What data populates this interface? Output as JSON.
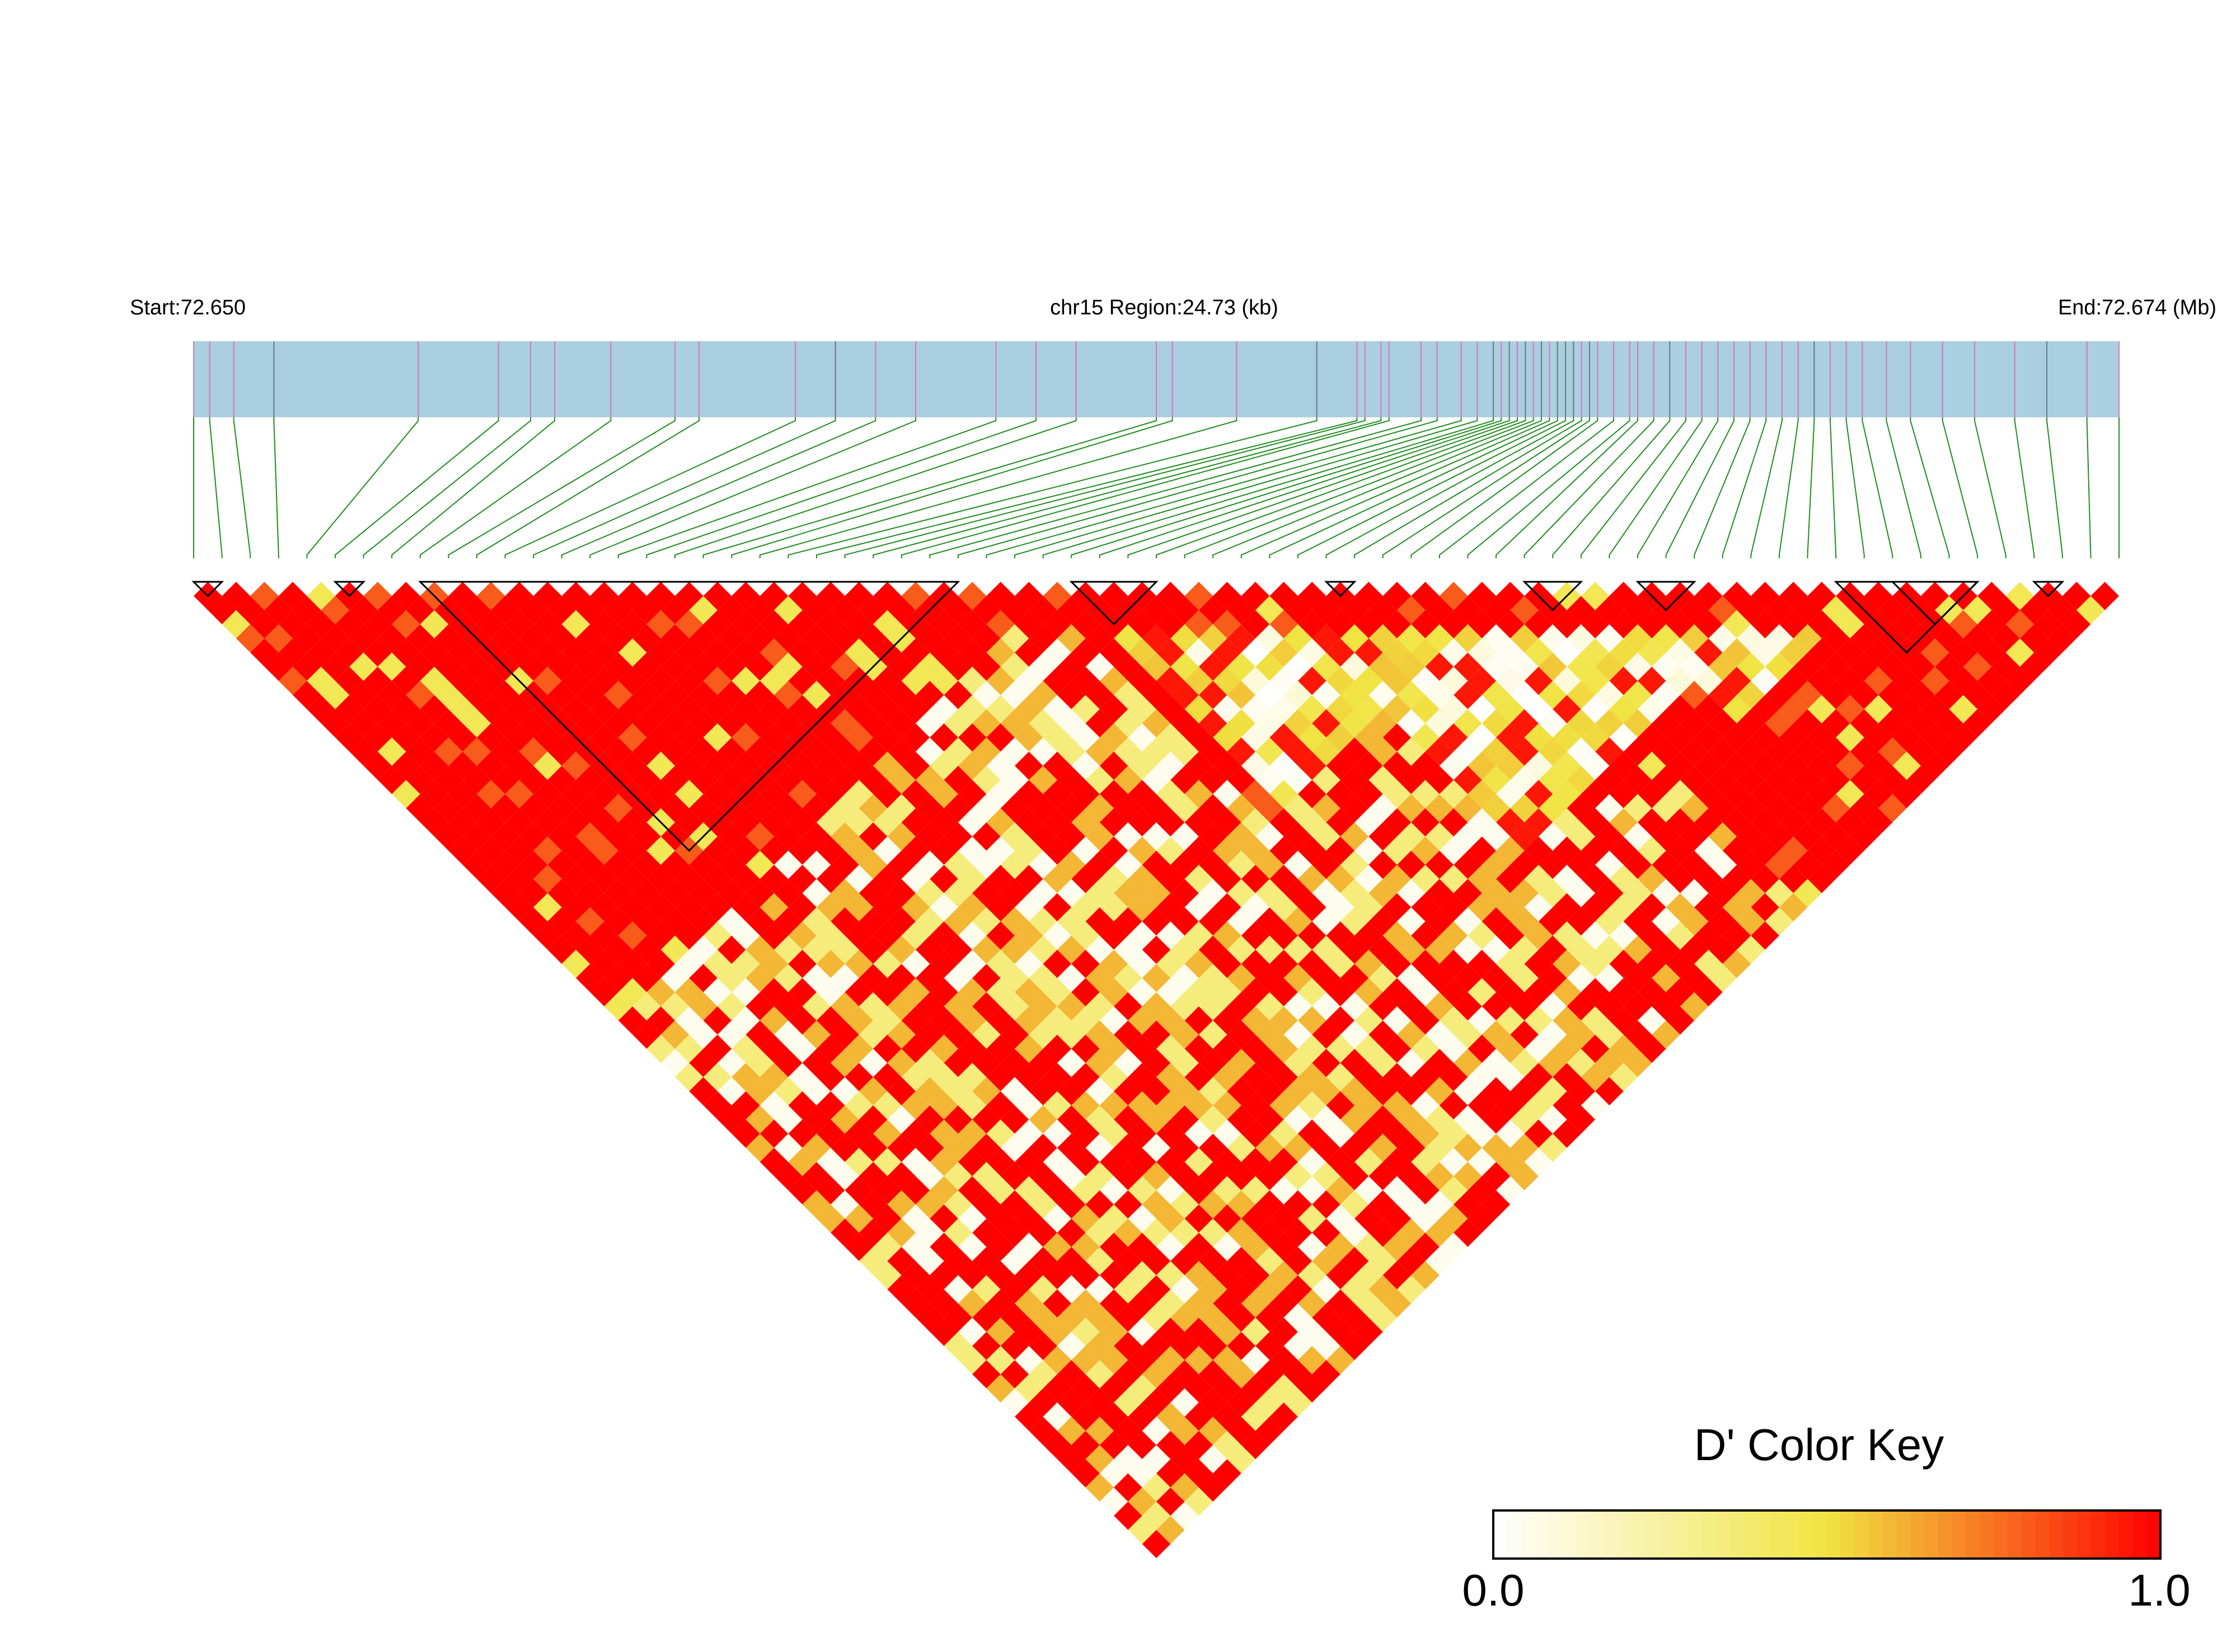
{
  "header": {
    "start_label": "Start:72.650",
    "region_label": "chr15 Region:24.73 (kb)",
    "end_label": "End:72.674 (Mb)"
  },
  "color_key": {
    "title": "D' Color Key",
    "min_label": "0.0",
    "max_label": "1.0"
  },
  "colors": {
    "track_fill": "#a9cfe1",
    "track_tick_pink": "#d07ab8",
    "track_tick_gray": "#6d7a7a",
    "connector_green": "#1e8c1e",
    "ld_low": "#ffffff",
    "ld_mid": "#f0e442",
    "ld_high": "#ff0000",
    "block_outline": "#000000"
  },
  "chart_data": {
    "type": "heatmap",
    "description_type": "LD (D') triangle plot",
    "chromosome": "chr15",
    "region_start_mb": 72.65,
    "region_end_mb": 72.674,
    "region_span_kb": 24.73,
    "snp_count": 69,
    "snp_positions_mb": [
      72.65,
      72.6502,
      72.6505,
      72.651,
      72.6528,
      72.6538,
      72.6542,
      72.6545,
      72.6552,
      72.656,
      72.6563,
      72.6575,
      72.658,
      72.6585,
      72.659,
      72.66,
      72.6605,
      72.661,
      72.662,
      72.6622,
      72.663,
      72.664,
      72.6645,
      72.6646,
      72.6648,
      72.6649,
      72.6653,
      72.6655,
      72.6658,
      72.666,
      72.6662,
      72.6663,
      72.6664,
      72.6665,
      72.6666,
      72.6667,
      72.6668,
      72.6669,
      72.667,
      72.6671,
      72.6672,
      72.6673,
      72.6674,
      72.6675,
      72.6677,
      72.6679,
      72.668,
      72.6682,
      72.6684,
      72.6686,
      72.6688,
      72.669,
      72.6692,
      72.6694,
      72.6696,
      72.6698,
      72.67,
      72.6702,
      72.6704,
      72.6706,
      72.6708,
      72.6711,
      72.6714,
      72.6718,
      72.6722,
      72.6727,
      72.6731,
      72.6736,
      72.674
    ],
    "blocks": [
      [
        0,
        1
      ],
      [
        5,
        6
      ],
      [
        8,
        27
      ],
      [
        31,
        34
      ],
      [
        40,
        41
      ],
      [
        47,
        49
      ],
      [
        51,
        53
      ],
      [
        58,
        63
      ],
      [
        60,
        63
      ],
      [
        65,
        66
      ]
    ],
    "high_ld_bands": [
      {
        "start": 0,
        "end": 30
      },
      {
        "start": 8,
        "end": 27
      },
      {
        "start": 30,
        "end": 46
      },
      {
        "start": 44,
        "end": 58
      },
      {
        "start": 46,
        "end": 68
      },
      {
        "start": 57,
        "end": 66
      }
    ],
    "low_ld_bands": [
      {
        "start": 31,
        "end": 46
      },
      {
        "start": 38,
        "end": 56
      },
      {
        "start": 50,
        "end": 59
      }
    ],
    "color_scale": {
      "min": 0.0,
      "max": 1.0,
      "title": "D' Color Key"
    }
  }
}
